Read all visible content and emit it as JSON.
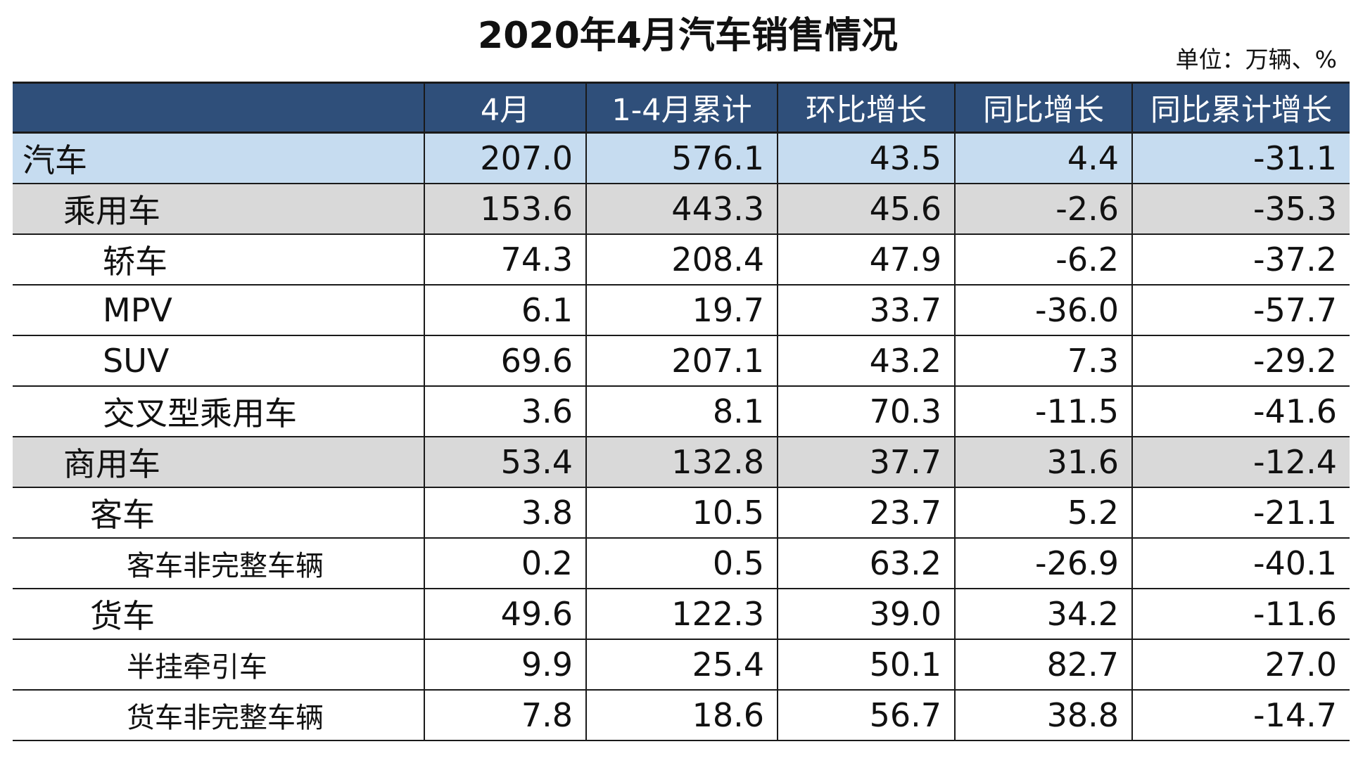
{
  "title": "2020年4月汽车销售情况",
  "unit": "单位：万辆、%",
  "table": {
    "headers": [
      "",
      "4月",
      "1-4月累计",
      "环比增长",
      "同比增长",
      "同比累计增长"
    ],
    "rows": [
      {
        "label": "汽车",
        "level": 0,
        "values": [
          "207.0",
          "576.1",
          "43.5",
          "4.4",
          "-31.1"
        ]
      },
      {
        "label": "乘用车",
        "level": 1,
        "values": [
          "153.6",
          "443.3",
          "45.6",
          "-2.6",
          "-35.3"
        ]
      },
      {
        "label": "轿车",
        "level": 2,
        "values": [
          "74.3",
          "208.4",
          "47.9",
          "-6.2",
          "-37.2"
        ]
      },
      {
        "label": "MPV",
        "level": 2,
        "values": [
          "6.1",
          "19.7",
          "33.7",
          "-36.0",
          "-57.7"
        ]
      },
      {
        "label": "SUV",
        "level": 2,
        "values": [
          "69.6",
          "207.1",
          "43.2",
          "7.3",
          "-29.2"
        ]
      },
      {
        "label": "交叉型乘用车",
        "level": 2,
        "values": [
          "3.6",
          "8.1",
          "70.3",
          "-11.5",
          "-41.6"
        ]
      },
      {
        "label": "商用车",
        "level": 1,
        "values": [
          "53.4",
          "132.8",
          "37.7",
          "31.6",
          "-12.4"
        ]
      },
      {
        "label": "客车",
        "level": "2b",
        "values": [
          "3.8",
          "10.5",
          "23.7",
          "5.2",
          "-21.1"
        ]
      },
      {
        "label": "客车非完整车辆",
        "level": 3,
        "values": [
          "0.2",
          "0.5",
          "63.2",
          "-26.9",
          "-40.1"
        ]
      },
      {
        "label": "货车",
        "level": "2b",
        "values": [
          "49.6",
          "122.3",
          "39.0",
          "34.2",
          "-11.6"
        ]
      },
      {
        "label": "半挂牵引车",
        "level": 3,
        "values": [
          "9.9",
          "25.4",
          "50.1",
          "82.7",
          "27.0"
        ]
      },
      {
        "label": "货车非完整车辆",
        "level": 3,
        "values": [
          "7.8",
          "18.6",
          "56.7",
          "38.8",
          "-14.7"
        ]
      }
    ]
  },
  "colors": {
    "header_bg": "#2f4f7a",
    "total_row_bg": "#c6dcf0",
    "category_row_bg": "#d9d9d9"
  }
}
